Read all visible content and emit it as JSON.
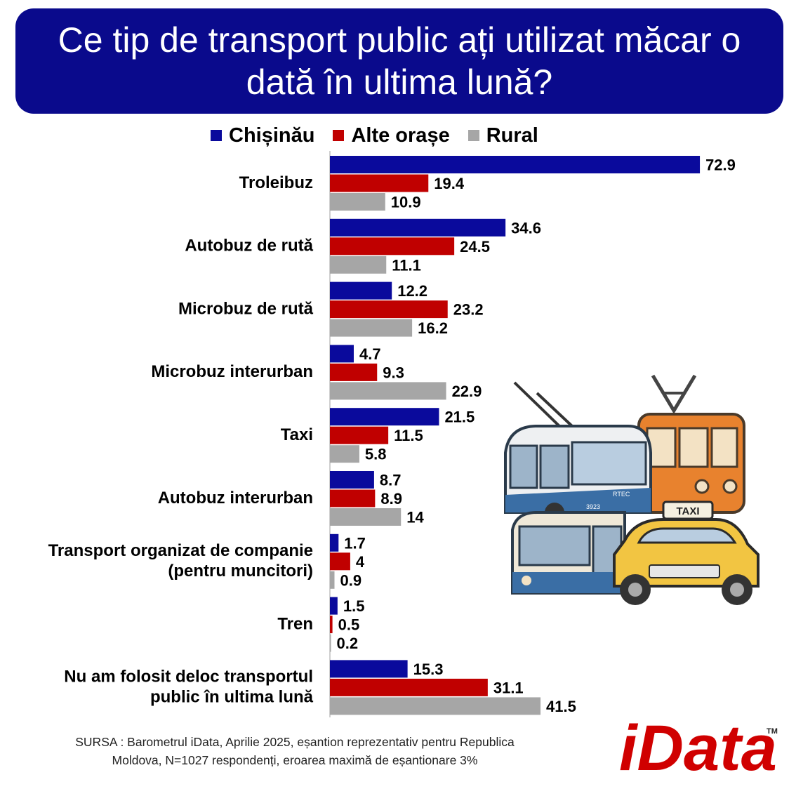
{
  "title": "Ce tip de transport public ați utilizat măcar o dată în ultima lună?",
  "colors": {
    "title_bg": "#0a0a8c",
    "chisinau": "#0a0a9c",
    "alte": "#c00000",
    "rural": "#a6a6a6"
  },
  "legend": [
    {
      "name": "Chișinău",
      "color": "#0a0a9c"
    },
    {
      "name": "Alte orașe",
      "color": "#c00000"
    },
    {
      "name": "Rural",
      "color": "#a6a6a6"
    }
  ],
  "chart_data": {
    "type": "bar",
    "orientation": "horizontal",
    "categories": [
      [
        "Troleibuz"
      ],
      [
        "Autobuz de rută"
      ],
      [
        "Microbuz de rută"
      ],
      [
        "Microbuz  interurban"
      ],
      [
        "Taxi"
      ],
      [
        "Autobuz interurban"
      ],
      [
        "Transport organizat de companie",
        "(pentru muncitori)"
      ],
      [
        "Tren"
      ],
      [
        "Nu am folosit deloc transportul",
        "public în ultima lună"
      ]
    ],
    "series": [
      {
        "name": "Chișinău",
        "values": [
          72.9,
          34.6,
          12.2,
          4.7,
          21.5,
          8.7,
          1.7,
          1.5,
          15.3
        ],
        "labels": [
          "72.9",
          "34.6",
          "12.2",
          "4.7",
          "21.5",
          "8.7",
          "1.7",
          "1.5",
          "15.3"
        ]
      },
      {
        "name": "Alte orașe",
        "values": [
          19.4,
          24.5,
          23.2,
          9.3,
          11.5,
          8.9,
          4,
          0.5,
          31.1
        ],
        "labels": [
          "19.4",
          "24.5",
          "23.2",
          "9.3",
          "11.5",
          "8.9",
          "4",
          "0.5",
          "31.1"
        ]
      },
      {
        "name": "Rural",
        "values": [
          10.9,
          11.1,
          16.2,
          22.9,
          5.8,
          14,
          0.9,
          0.2,
          41.5
        ],
        "labels": [
          "10.9",
          "11.1",
          "16.2",
          "22.9",
          "5.8",
          "14",
          "0.9",
          "0.2",
          "41.5"
        ]
      }
    ],
    "legend_position": "top",
    "grid": false
  },
  "source": {
    "line1": "SURSA : Barometrul iData, Aprilie 2025, eșantion reprezentativ pentru Republica",
    "line2": "Moldova, N=1027 respondenți, eroarea maximă de eșantionare 3%"
  },
  "logo": {
    "text": "iData",
    "tm": "TM"
  },
  "illustration": {
    "icon": "public-transport-illustration-icon",
    "taxi_sign": "TAXI",
    "bus_code": "RTEC",
    "bus_number": "3923"
  }
}
